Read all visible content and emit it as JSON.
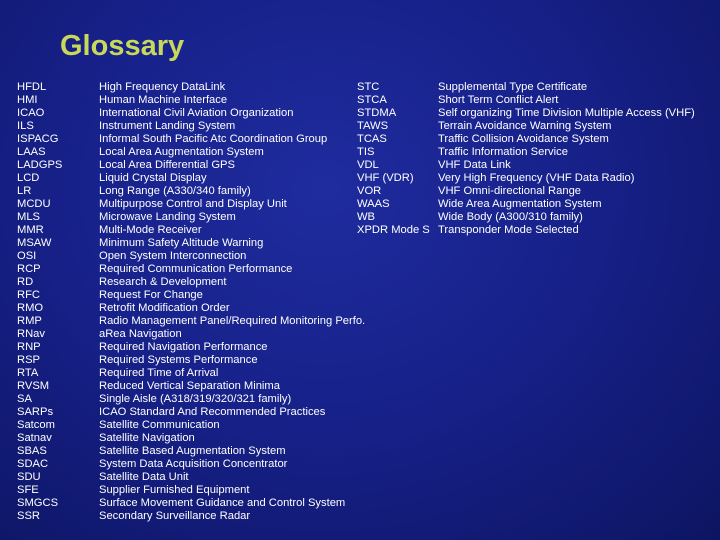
{
  "title": "Glossary",
  "left_terms": [
    {
      "abbr": "HFDL",
      "definition": "High Frequency DataLink"
    },
    {
      "abbr": "HMI",
      "definition": "Human Machine Interface"
    },
    {
      "abbr": "ICAO",
      "definition": "International Civil Aviation Organization"
    },
    {
      "abbr": "ILS",
      "definition": "Instrument Landing System"
    },
    {
      "abbr": "ISPACG",
      "definition": "Informal South Pacific Atc Coordination Group"
    },
    {
      "abbr": "LAAS",
      "definition": "Local Area Augmentation System"
    },
    {
      "abbr": "LADGPS",
      "definition": "Local Area Differential GPS"
    },
    {
      "abbr": "LCD",
      "definition": "Liquid Crystal Display"
    },
    {
      "abbr": "LR",
      "definition": "Long Range (A330/340 family)"
    },
    {
      "abbr": "MCDU",
      "definition": "Multipurpose Control and Display Unit"
    },
    {
      "abbr": "MLS",
      "definition": "Microwave Landing System"
    },
    {
      "abbr": "MMR",
      "definition": "Multi-Mode Receiver"
    },
    {
      "abbr": "MSAW",
      "definition": "Minimum Safety Altitude Warning"
    },
    {
      "abbr": "OSI",
      "definition": "Open System Interconnection"
    },
    {
      "abbr": "RCP",
      "definition": "Required Communication Performance"
    },
    {
      "abbr": "RD",
      "definition": "Research & Development"
    },
    {
      "abbr": "RFC",
      "definition": "Request For Change"
    },
    {
      "abbr": "RMO",
      "definition": "Retrofit Modification Order"
    },
    {
      "abbr": "RMP",
      "definition": "Radio Management Panel/Required Monitoring Perfo."
    },
    {
      "abbr": "RNav",
      "definition": "aRea Navigation"
    },
    {
      "abbr": "RNP",
      "definition": "Required Navigation Performance"
    },
    {
      "abbr": "RSP",
      "definition": "Required Systems Performance"
    },
    {
      "abbr": "RTA",
      "definition": "Required Time of Arrival"
    },
    {
      "abbr": "RVSM",
      "definition": "Reduced Vertical Separation Minima"
    },
    {
      "abbr": "SA",
      "definition": "Single Aisle (A318/319/320/321 family)"
    },
    {
      "abbr": "SARPs",
      "definition": "ICAO Standard And Recommended Practices"
    },
    {
      "abbr": "Satcom",
      "definition": "Satellite Communication"
    },
    {
      "abbr": "Satnav",
      "definition": "Satellite Navigation"
    },
    {
      "abbr": "SBAS",
      "definition": "Satellite Based Augmentation System"
    },
    {
      "abbr": "SDAC",
      "definition": "System Data Acquisition Concentrator"
    },
    {
      "abbr": "SDU",
      "definition": "Satellite Data Unit"
    },
    {
      "abbr": "SFE",
      "definition": "Supplier Furnished Equipment"
    },
    {
      "abbr": "SMGCS",
      "definition": "Surface Movement Guidance and Control System"
    },
    {
      "abbr": "SSR",
      "definition": "Secondary Surveillance Radar"
    }
  ],
  "right_terms": [
    {
      "abbr": "STC",
      "definition": "Supplemental Type Certificate"
    },
    {
      "abbr": "STCA",
      "definition": "Short Term Conflict Alert"
    },
    {
      "abbr": "STDMA",
      "definition": "Self organizing Time Division Multiple Access (VHF)"
    },
    {
      "abbr": "TAWS",
      "definition": "Terrain Avoidance Warning System"
    },
    {
      "abbr": "TCAS",
      "definition": "Traffic Collision Avoidance System"
    },
    {
      "abbr": "TIS",
      "definition": "Traffic Information Service"
    },
    {
      "abbr": "VDL",
      "definition": "VHF Data Link"
    },
    {
      "abbr": "VHF (VDR)",
      "definition": "Very High Frequency (VHF Data Radio)"
    },
    {
      "abbr": "VOR",
      "definition": "VHF Omni-directional Range"
    },
    {
      "abbr": "WAAS",
      "definition": "Wide Area Augmentation System"
    },
    {
      "abbr": "WB",
      "definition": "Wide Body (A300/310 family)"
    },
    {
      "abbr": "XPDR Mode S",
      "definition": "Transponder Mode Selected"
    }
  ]
}
